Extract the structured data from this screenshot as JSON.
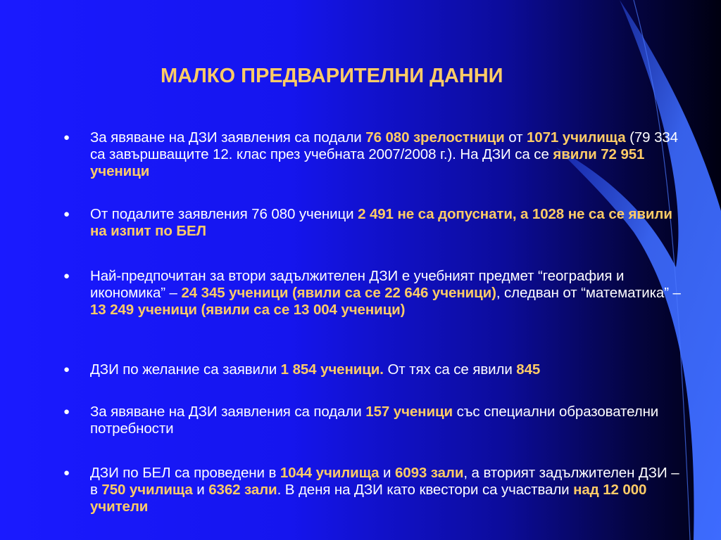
{
  "colors": {
    "accent": "#ffcc66",
    "text": "#ffffff",
    "background_left": "#1a1aff",
    "background_right": "#000010",
    "swoosh": "#3d6bff"
  },
  "title": "МАЛКО ПРЕДВАРИТЕЛНИ ДАННИ",
  "bullets": [
    {
      "segments": [
        {
          "t": "За явяване на ДЗИ заявления са подали ",
          "bold": false
        },
        {
          "t": "76 080 зрелостници",
          "bold": true
        },
        {
          "t": " от ",
          "bold": false
        },
        {
          "t": "1071 училища",
          "bold": true
        },
        {
          "t": " (79 334 са завършващите 12. клас през учебната 2007/2008 г.). На ДЗИ са се ",
          "bold": false
        },
        {
          "t": "явили 72 951 ученици",
          "bold": true
        }
      ]
    },
    {
      "segments": [
        {
          "t": "От подалите заявления 76 080 ученици ",
          "bold": false
        },
        {
          "t": "2 491 не са допуснати, а 1028 не са се явили на изпит по БЕЛ",
          "bold": true
        }
      ]
    },
    {
      "segments": [
        {
          "t": "Най-предпочитан за втори задължителен ДЗИ е учебният предмет “география и икономика” – ",
          "bold": false
        },
        {
          "t": "24 345 ученици (явили са се 22 646 ученици)",
          "bold": true
        },
        {
          "t": ", следван от “математика” – ",
          "bold": false
        },
        {
          "t": "13 249 ученици (явили са се 13 004 ученици)",
          "bold": true
        }
      ]
    },
    {
      "segments": [
        {
          "t": "ДЗИ по желание са заявили ",
          "bold": false
        },
        {
          "t": "1 854 ученици.",
          "bold": true
        },
        {
          "t": " От тях са се явили ",
          "bold": false
        },
        {
          "t": "845",
          "bold": true
        }
      ]
    },
    {
      "segments": [
        {
          "t": "За явяване на ДЗИ заявления са подали ",
          "bold": false
        },
        {
          "t": "157 ученици",
          "bold": true
        },
        {
          "t": " със специални образователни потребности",
          "bold": false
        }
      ]
    },
    {
      "segments": [
        {
          "t": "ДЗИ по БЕЛ са проведени в ",
          "bold": false
        },
        {
          "t": "1044 училища",
          "bold": true
        },
        {
          "t": " и ",
          "bold": false
        },
        {
          "t": "6093 зали",
          "bold": true
        },
        {
          "t": ", а вторият задължителен ДЗИ – в ",
          "bold": false
        },
        {
          "t": "750 училища",
          "bold": true
        },
        {
          "t": " и ",
          "bold": false
        },
        {
          "t": "6362 зали",
          "bold": true
        },
        {
          "t": ". В деня на ДЗИ като квестори са участвали ",
          "bold": false
        },
        {
          "t": "над 12 000 учители",
          "bold": true
        }
      ]
    }
  ]
}
